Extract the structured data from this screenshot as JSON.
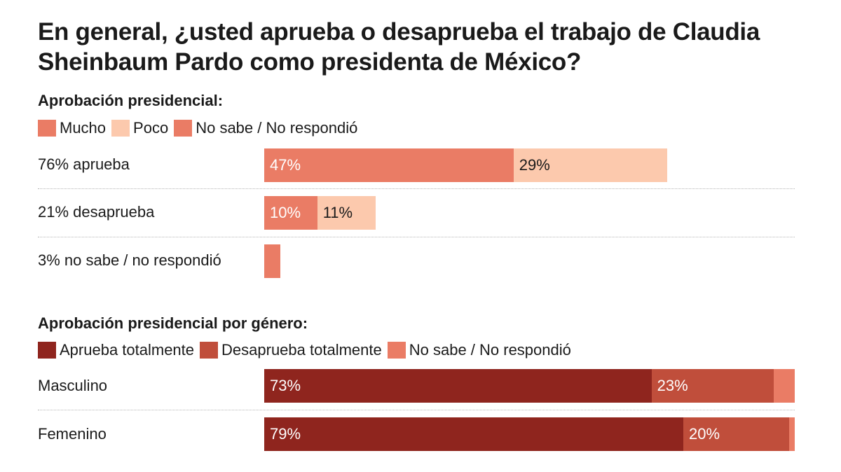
{
  "title": "En general, ¿usted aprueba o desaprueba el trabajo de Claudia Sheinbaum Pardo como presidenta de México?",
  "chart_data": [
    {
      "type": "bar",
      "stacked": true,
      "orientation": "horizontal",
      "title": "Aprobación presidencial:",
      "legend": [
        {
          "name": "Mucho",
          "color": "#ea7c65"
        },
        {
          "name": "Poco",
          "color": "#fcc9ad"
        },
        {
          "name": "No sabe / No respondió",
          "color": "#ea7c65"
        }
      ],
      "categories": [
        "76% aprueba",
        "21% desaprueba",
        "3% no sabe / no respondió"
      ],
      "rows": [
        {
          "segments": [
            {
              "value": 47,
              "label": "47%",
              "color": "#ea7c65",
              "text": "light"
            },
            {
              "value": 29,
              "label": "29%",
              "color": "#fcc9ad",
              "text": "dark"
            }
          ]
        },
        {
          "segments": [
            {
              "value": 10,
              "label": "10%",
              "color": "#ea7c65",
              "text": "light"
            },
            {
              "value": 11,
              "label": "11%",
              "color": "#fcc9ad",
              "text": "dark"
            }
          ]
        },
        {
          "segments": [
            {
              "value": 3,
              "label": "",
              "color": "#ea7c65",
              "text": "light"
            }
          ]
        }
      ],
      "xlim": [
        0,
        100
      ]
    },
    {
      "type": "bar",
      "stacked": true,
      "orientation": "horizontal",
      "title": "Aprobación presidencial por género:",
      "legend": [
        {
          "name": "Aprueba totalmente",
          "color": "#8f251e"
        },
        {
          "name": "Desaprueba totalmente",
          "color": "#c04e3b"
        },
        {
          "name": "No sabe / No respondió",
          "color": "#ea7c65"
        }
      ],
      "categories": [
        "Masculino",
        "Femenino"
      ],
      "rows": [
        {
          "segments": [
            {
              "value": 73,
              "label": "73%",
              "color": "#8f251e",
              "text": "light"
            },
            {
              "value": 23,
              "label": "23%",
              "color": "#c04e3b",
              "text": "light"
            },
            {
              "value": 4,
              "label": "",
              "color": "#ea7c65",
              "text": "light"
            }
          ]
        },
        {
          "segments": [
            {
              "value": 79,
              "label": "79%",
              "color": "#8f251e",
              "text": "light"
            },
            {
              "value": 20,
              "label": "20%",
              "color": "#c04e3b",
              "text": "light"
            },
            {
              "value": 1,
              "label": "",
              "color": "#ea7c65",
              "text": "light"
            }
          ]
        }
      ],
      "xlim": [
        0,
        100
      ]
    }
  ]
}
